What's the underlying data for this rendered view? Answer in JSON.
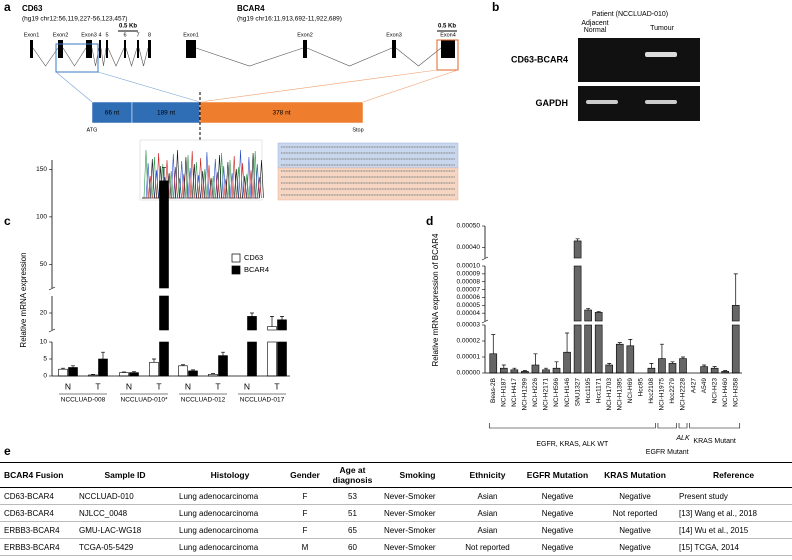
{
  "panel_a": {
    "letter": "a",
    "genes": [
      {
        "name": "CD63",
        "coords": "(hg19 chr12:56,119,227-56,123,457)",
        "scale": "0.5 Kb",
        "exons": [
          "Exon1",
          "Exon2",
          "Exon3",
          "4",
          "5",
          "6",
          "7",
          "8"
        ]
      },
      {
        "name": "BCAR4",
        "coords": "(hg19 chr16:11,913,692-11,922,689)",
        "scale": "0.5 Kb",
        "exons": [
          "Exon1",
          "Exon2",
          "Exon3",
          "Exon4"
        ]
      }
    ],
    "segments": [
      "66 nt",
      "189 nt",
      "378 nt"
    ],
    "start": "ATG",
    "stop": "Stop"
  },
  "panel_b": {
    "letter": "b",
    "patient": "Patient (NCCLUAD-010)",
    "lanes": [
      "Adjacent Normal",
      "Tumour"
    ],
    "rows": [
      "CD63-BCAR4",
      "GAPDH"
    ]
  },
  "chart_data": [
    {
      "type": "bar",
      "letter": "c",
      "ylabel": "Relative mRNA expression",
      "categories": [
        "N",
        "T",
        "N",
        "T",
        "N",
        "T",
        "N",
        "T"
      ],
      "group_labels": [
        "NCCLUAD-008",
        "NCCLUAD-010*",
        "NCCLUAD-012",
        "NCCLUAD-017"
      ],
      "series": [
        {
          "name": "CD63",
          "color": "#ffffff",
          "values": [
            2,
            0.3,
            1,
            4,
            3,
            0.5,
            null,
            16
          ],
          "errors": [
            0.3,
            0.2,
            0.2,
            1,
            0.3,
            0.2,
            null,
            3
          ]
        },
        {
          "name": "BCAR4",
          "color": "#000000",
          "values": [
            2.5,
            5,
            1,
            138,
            1.5,
            6,
            19,
            18
          ],
          "errors": [
            0.5,
            2,
            0.3,
            14,
            0.3,
            1,
            1,
            1
          ]
        }
      ],
      "y_segments": [
        {
          "ylim": [
            0,
            10
          ],
          "yticks": [
            0,
            5,
            10
          ]
        },
        {
          "ylim": [
            15,
            25
          ],
          "yticks": [
            20
          ]
        },
        {
          "ylim": [
            25,
            160
          ],
          "yticks": [
            50,
            100,
            150
          ]
        }
      ],
      "legend": "upper right"
    },
    {
      "type": "bar",
      "letter": "d",
      "ylabel": "Relative mRNA expression of BCAR4",
      "color": "#666666",
      "categories": [
        "Beas-2B",
        "NCI-H187",
        "NCI-H417",
        "NCI-H1299",
        "NCI-H226",
        "NCI-H2171",
        "NCI-H596",
        "NCI-H146",
        "SNU1327",
        "Hcc1195",
        "Hcc1171",
        "NCI-H1703",
        "NCI-H1395",
        "NCI-H69",
        "Hcc95",
        "Hcc2108",
        "NCI-H1975",
        "Hcc2279",
        "NCI-H2228",
        "A427",
        "A549",
        "NCI-H23",
        "NCI-H460",
        "NCI-H358"
      ],
      "values": [
        1.2e-05,
        3e-06,
        2e-06,
        1e-06,
        5e-06,
        2e-06,
        3e-06,
        1.3e-05,
        0.00043,
        4.4e-05,
        4.1e-05,
        5e-06,
        1.8e-05,
        1.7e-05,
        0,
        3e-06,
        9e-06,
        6e-06,
        9e-06,
        0,
        4e-06,
        3e-06,
        1e-06,
        5e-05
      ],
      "errors": [
        1.2e-05,
        2e-06,
        1e-06,
        5e-07,
        7e-06,
        1e-06,
        4e-06,
        1.2e-05,
        1e-05,
        2e-06,
        1e-06,
        1e-06,
        1e-06,
        4e-06,
        0,
        3e-06,
        9e-06,
        1e-06,
        1e-06,
        0,
        1e-06,
        1e-06,
        5e-07,
        4e-05
      ],
      "y_segments": [
        {
          "ylim": [
            0,
            3e-05
          ],
          "yticks": [
            {
              "value": 0,
              "label": "0.00000"
            },
            1e-05,
            2e-05,
            3e-05
          ]
        },
        {
          "ylim": [
            3e-05,
            0.0001
          ],
          "yticks": [
            4e-05,
            5e-05,
            6e-05,
            7e-05,
            8e-05,
            9e-05,
            {
              "value": 0.0001,
              "label": "0.00010"
            }
          ]
        },
        {
          "ylim": [
            0.00035,
            0.0005
          ],
          "yticks": [
            {
              "value": 0.0004,
              "label": "0.00040"
            },
            {
              "value": 0.0005,
              "label": "0.00050"
            }
          ]
        }
      ],
      "group_labels": [
        "EGFR, KRAS, ALK WT",
        "EGFR Mutant",
        "ALK",
        "KRAS Mutant"
      ]
    }
  ],
  "panel_e": {
    "letter": "e",
    "header": [
      "BCAR4 Fusion",
      "Sample ID",
      "Histology",
      "Gender",
      "Age at diagnosis",
      "Smoking",
      "Ethnicity",
      "EGFR Mutation",
      "KRAS Mutation",
      "Reference"
    ],
    "rows": [
      [
        "CD63-BCAR4",
        "NCCLUAD-010",
        "Lung adenocarcinoma",
        "F",
        53,
        "Never-Smoker",
        "Asian",
        "Negative",
        "Negative",
        "Present study"
      ],
      [
        "CD63-BCAR4",
        "NJLCC_0048",
        "Lung adenocarcinoma",
        "F",
        51,
        "Never-Smoker",
        "Asian",
        "Negative",
        "Not reported",
        "[13] Wang et al., 2018"
      ],
      [
        "ERBB3-BCAR4",
        "GMU-LAC-WG18",
        "Lung adenocarcinoma",
        "F",
        65,
        "Never-Smoker",
        "Asian",
        "Negative",
        "Negative",
        "[14] Wu et al., 2015"
      ],
      [
        "ERBB3-BCAR4",
        "TCGA-05-5429",
        "Lung adenocarcinoma",
        "M",
        60,
        "Never-Smoker",
        "Not reported",
        "Negative",
        "Negative",
        "[15] TCGA, 2014"
      ]
    ]
  }
}
